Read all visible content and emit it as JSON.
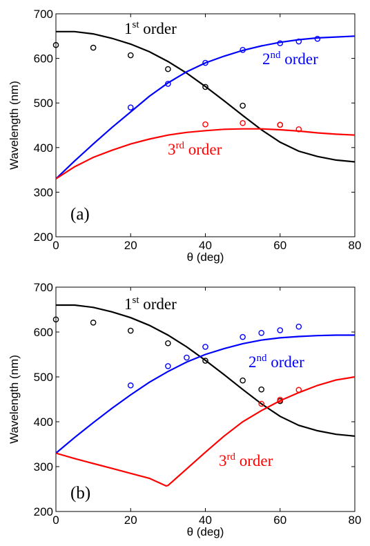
{
  "chart_data": [
    {
      "type": "line",
      "panel_label": "(a)",
      "xlabel": "θ (deg)",
      "ylabel": "Wavelength (nm)",
      "xlim": [
        0,
        80
      ],
      "ylim": [
        200,
        700
      ],
      "xticks": [
        0,
        20,
        40,
        60,
        80
      ],
      "yticks": [
        200,
        300,
        400,
        500,
        600,
        700
      ],
      "series": [
        {
          "name": "1st order",
          "label": {
            "base": "1",
            "sup": "st",
            "rest": " order"
          },
          "color": "#000000",
          "curve": {
            "x": [
              0,
              5,
              10,
              15,
              20,
              25,
              30,
              35,
              40,
              45,
              50,
              55,
              60,
              65,
              70,
              75,
              80
            ],
            "y": [
              660,
              660,
              655,
              645,
              632,
              615,
              593,
              567,
              537,
              505,
              472,
              440,
              412,
              392,
              380,
              372,
              368
            ]
          },
          "points": {
            "x": [
              0,
              10,
              20,
              30,
              40,
              50,
              60
            ],
            "y": [
              630,
              624,
              607,
              576,
              536,
              494,
              451
            ]
          }
        },
        {
          "name": "2nd order",
          "label": {
            "base": "2",
            "sup": "nd",
            "rest": " order"
          },
          "color": "#0000ff",
          "curve": {
            "x": [
              0,
              5,
              10,
              15,
              20,
              25,
              30,
              35,
              40,
              45,
              50,
              55,
              60,
              65,
              70,
              75,
              80
            ],
            "y": [
              330,
              370,
              408,
              445,
              480,
              515,
              545,
              570,
              590,
              605,
              618,
              628,
              636,
              642,
              646,
              648,
              650
            ]
          },
          "points": {
            "x": [
              20,
              30,
              40,
              50,
              60,
              65,
              70
            ],
            "y": [
              490,
              543,
              590,
              619,
              634,
              638,
              644
            ]
          }
        },
        {
          "name": "3rd order",
          "label": {
            "base": "3",
            "sup": "rd",
            "rest": " order"
          },
          "color": "#ff0000",
          "curve": {
            "x": [
              0,
              5,
              10,
              15,
              20,
              25,
              30,
              35,
              40,
              45,
              50,
              55,
              60,
              65,
              70,
              75,
              80
            ],
            "y": [
              330,
              357,
              378,
              394,
              408,
              419,
              428,
              434,
              438,
              441,
              442,
              442,
              440,
              437,
              433,
              430,
              428
            ]
          },
          "points": {
            "x": [
              40,
              50,
              60,
              65
            ],
            "y": [
              452,
              455,
              451,
              441
            ]
          }
        }
      ]
    },
    {
      "type": "line",
      "panel_label": "(b)",
      "xlabel": "θ (deg)",
      "ylabel": "Wavelength (nm)",
      "xlim": [
        0,
        80
      ],
      "ylim": [
        200,
        700
      ],
      "xticks": [
        0,
        20,
        40,
        60,
        80
      ],
      "yticks": [
        200,
        300,
        400,
        500,
        600,
        700
      ],
      "series": [
        {
          "name": "1st order",
          "label": {
            "base": "1",
            "sup": "st",
            "rest": " order"
          },
          "color": "#000000",
          "curve": {
            "x": [
              0,
              5,
              10,
              15,
              20,
              25,
              30,
              35,
              40,
              45,
              50,
              55,
              60,
              65,
              70,
              75,
              80
            ],
            "y": [
              660,
              660,
              655,
              645,
              632,
              615,
              593,
              567,
              537,
              505,
              472,
              440,
              412,
              392,
              380,
              372,
              368
            ]
          },
          "points": {
            "x": [
              0,
              10,
              20,
              30,
              40,
              50,
              55,
              60
            ],
            "y": [
              628,
              621,
              603,
              575,
              536,
              492,
              472,
              446
            ]
          }
        },
        {
          "name": "2nd order",
          "label": {
            "base": "2",
            "sup": "nd",
            "rest": " order"
          },
          "color": "#0000ff",
          "curve": {
            "x": [
              0,
              5,
              10,
              15,
              20,
              25,
              30,
              35,
              40,
              45,
              50,
              55,
              60,
              65,
              70,
              75,
              80
            ],
            "y": [
              330,
              365,
              398,
              430,
              460,
              488,
              512,
              533,
              550,
              563,
              574,
              582,
              587,
              590,
              592,
              593,
              593
            ]
          },
          "points": {
            "x": [
              20,
              30,
              35,
              40,
              50,
              55,
              60,
              65
            ],
            "y": [
              481,
              524,
              543,
              567,
              589,
              598,
              604,
              612
            ]
          }
        },
        {
          "name": "3rd order",
          "label": {
            "base": "3",
            "sup": "rd",
            "rest": " order"
          },
          "color": "#ff0000",
          "curve": {
            "x": [
              0,
              5,
              10,
              15,
              20,
              25,
              29.5,
              30,
              35,
              40,
              45,
              50,
              55,
              60,
              65,
              70,
              75,
              80
            ],
            "y": [
              330,
              318,
              307,
              296,
              285,
              274,
              257,
              258,
              295,
              332,
              368,
              400,
              425,
              447,
              465,
              481,
              493,
              500
            ]
          },
          "points": {
            "x": [
              55,
              60,
              65
            ],
            "y": [
              440,
              449,
              471
            ]
          }
        }
      ]
    }
  ]
}
